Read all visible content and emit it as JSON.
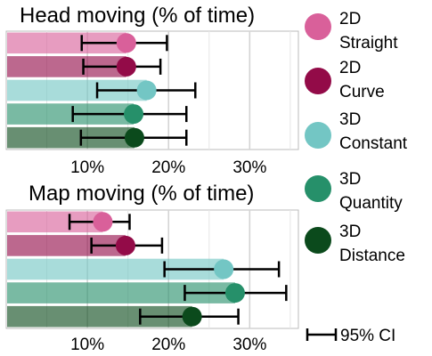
{
  "chart_data": [
    {
      "type": "bar",
      "title": "Head moving (% of time)",
      "xlim": [
        0,
        36
      ],
      "x_ticks": [
        "10%",
        "20%",
        "30%"
      ],
      "x_tick_values": [
        10,
        20,
        30
      ],
      "grid": true,
      "categories": [
        "2D Straight",
        "2D Curve",
        "3D Constant",
        "3D Quantity",
        "3D Distance"
      ],
      "values": [
        14.8,
        14.8,
        17.3,
        15.7,
        15.8
      ],
      "ci_low": [
        9.3,
        9.5,
        11.2,
        8.2,
        9.2
      ],
      "ci_high": [
        19.8,
        19.0,
        23.3,
        22.2,
        22.2
      ]
    },
    {
      "type": "bar",
      "title": "Map moving (% of time)",
      "xlim": [
        0,
        36
      ],
      "x_ticks": [
        "10%",
        "20%",
        "30%"
      ],
      "x_tick_values": [
        10,
        20,
        30
      ],
      "grid": true,
      "categories": [
        "2D Straight",
        "2D Curve",
        "3D Constant",
        "3D Quantity",
        "3D Distance"
      ],
      "values": [
        11.9,
        14.7,
        26.8,
        28.2,
        22.9
      ],
      "ci_low": [
        7.8,
        10.5,
        19.5,
        22.0,
        16.5
      ],
      "ci_high": [
        15.2,
        19.2,
        33.6,
        34.5,
        28.6
      ]
    }
  ],
  "legend": {
    "items": [
      {
        "line1": "2D",
        "line2": "Straight",
        "color": "#D9609A"
      },
      {
        "line1": "2D",
        "line2": "Curve",
        "color": "#930B48"
      },
      {
        "line1": "3D",
        "line2": "Constant",
        "color": "#73C6C4"
      },
      {
        "line1": "3D",
        "line2": "Quantity",
        "color": "#26906A"
      },
      {
        "line1": "3D",
        "line2": "Distance",
        "color": "#0B4A1C"
      }
    ],
    "ci_label": "95% CI"
  }
}
